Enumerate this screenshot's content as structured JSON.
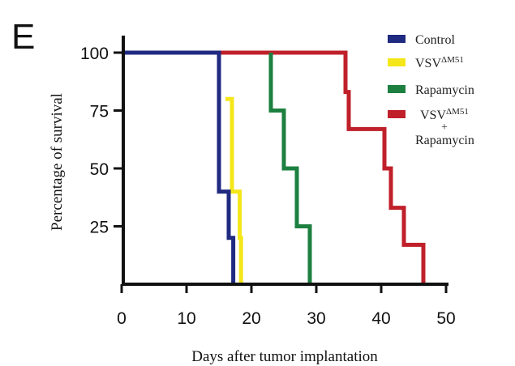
{
  "panel_label": "E",
  "chart_data": {
    "type": "line",
    "subtype": "kaplan-meier step",
    "xlabel": "Days after tumor implantation",
    "ylabel": "Percentage of survival",
    "xlim": [
      0,
      50
    ],
    "ylim": [
      0,
      100
    ],
    "xticks": [
      "0",
      "10",
      "20",
      "30",
      "40",
      "50"
    ],
    "yticks": [
      "25",
      "50",
      "75",
      "100"
    ],
    "xtick_values": [
      0,
      10,
      20,
      30,
      40,
      50
    ],
    "ytick_values": [
      25,
      50,
      75,
      100
    ],
    "grid": false,
    "legend_position": "top-right",
    "series": [
      {
        "name": "Control",
        "sup": "",
        "color": "#1f2a80",
        "points": [
          [
            0,
            100
          ],
          [
            15,
            100
          ],
          [
            15,
            40
          ],
          [
            16.5,
            40
          ],
          [
            16.5,
            20
          ],
          [
            17.2,
            20
          ],
          [
            17.2,
            0
          ]
        ]
      },
      {
        "name": "VSV",
        "sup": "ΔM51",
        "color": "#f5e61a",
        "points": [
          [
            16,
            80
          ],
          [
            16,
            80
          ],
          [
            17,
            80
          ],
          [
            17,
            40
          ],
          [
            18.2,
            40
          ],
          [
            18.2,
            20
          ],
          [
            18.4,
            20
          ],
          [
            18.4,
            0
          ]
        ]
      },
      {
        "name": "Rapamycin",
        "sup": "",
        "color": "#1e8040",
        "points": [
          [
            23,
            100
          ],
          [
            23,
            75
          ],
          [
            25,
            75
          ],
          [
            25,
            50
          ],
          [
            27,
            50
          ],
          [
            27,
            25
          ],
          [
            29,
            25
          ],
          [
            29,
            0
          ]
        ]
      },
      {
        "name": "VSV",
        "sup": "ΔM51",
        "line2": "+",
        "line3": "Rapamycin",
        "color": "#c0202a",
        "points": [
          [
            0,
            100
          ],
          [
            34.5,
            100
          ],
          [
            34.5,
            83
          ],
          [
            35,
            83
          ],
          [
            35,
            67
          ],
          [
            40.5,
            67
          ],
          [
            40.5,
            50
          ],
          [
            41.5,
            50
          ],
          [
            41.5,
            33
          ],
          [
            43.5,
            33
          ],
          [
            43.5,
            17
          ],
          [
            46.5,
            17
          ],
          [
            46.5,
            0
          ]
        ]
      }
    ]
  }
}
